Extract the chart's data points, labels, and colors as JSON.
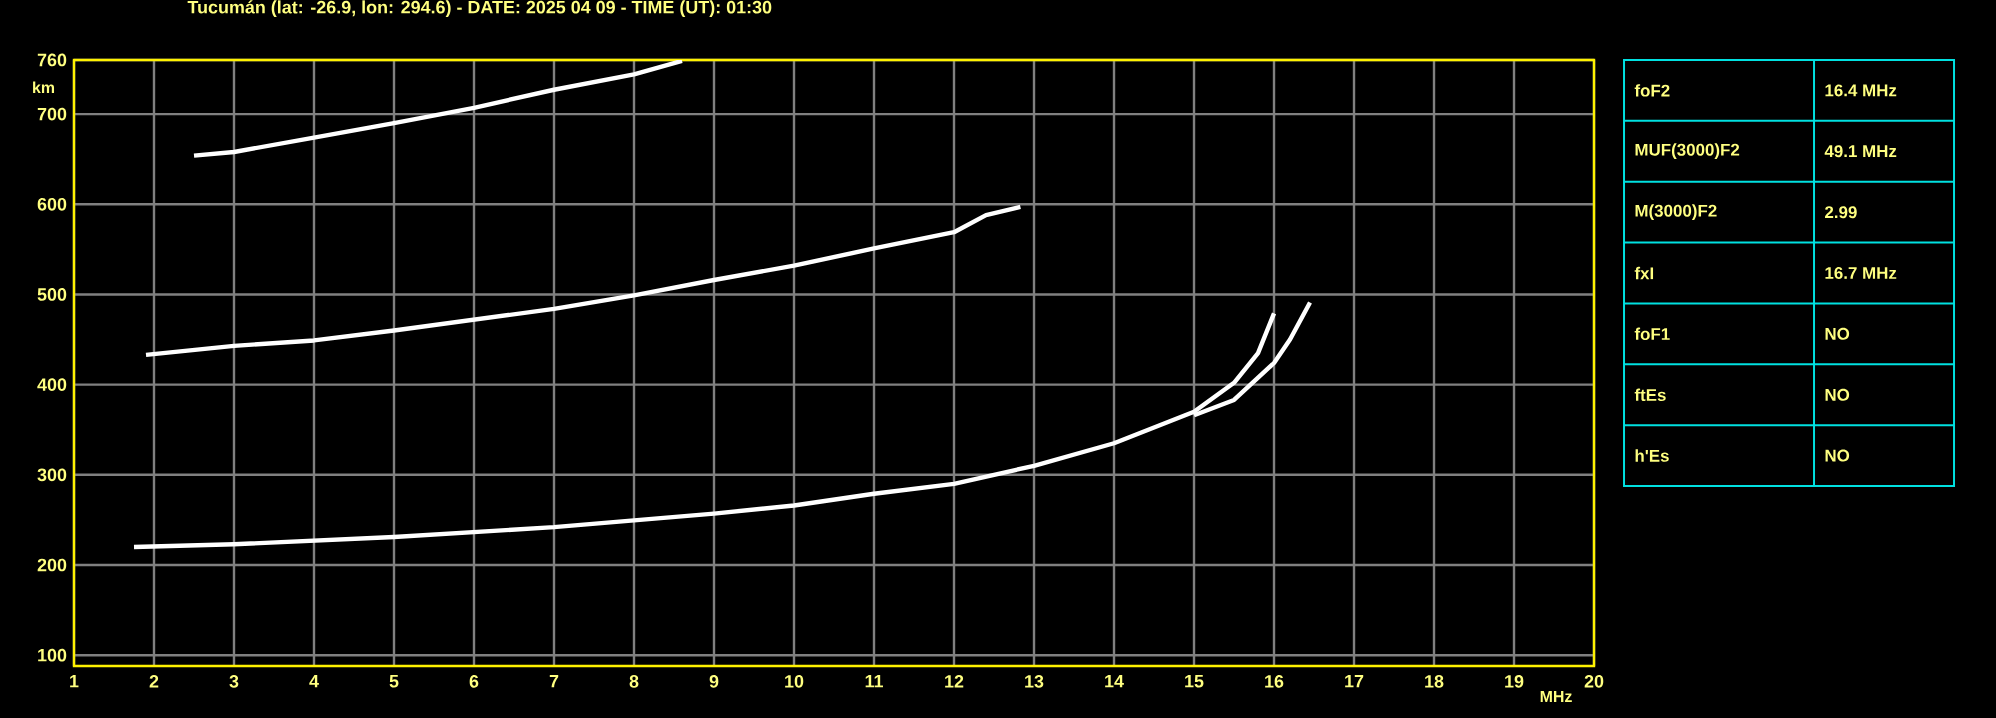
{
  "chart_data": [
    {
      "type": "line",
      "title": "Tucumán (lat: -26.9, lon: 294.6) - DATE: 2025 04 09 - TIME (UT): 01:30",
      "xlabel": "MHz",
      "ylabel": "km",
      "xlim": [
        1,
        20
      ],
      "ylim": [
        88,
        760
      ],
      "xticks": [
        1,
        2,
        3,
        4,
        5,
        6,
        7,
        8,
        9,
        10,
        11,
        12,
        13,
        14,
        15,
        16,
        17,
        18,
        19,
        20
      ],
      "yticks": [
        100,
        200,
        300,
        400,
        500,
        600,
        700,
        760
      ],
      "grid": true,
      "marker": "none",
      "line_style": "solid",
      "series": [
        {
          "color": "#ffffff",
          "x": [
            1.75,
            3,
            5,
            7,
            9,
            10,
            11,
            12,
            13,
            14,
            15,
            15.5,
            15.8,
            16.0
          ],
          "values": [
            220,
            223,
            231,
            242,
            257,
            266,
            279,
            290,
            310,
            335,
            370,
            402,
            435,
            479
          ]
        },
        {
          "color": "#ffffff",
          "x": [
            15.0,
            15.5,
            16.0,
            16.2,
            16.45
          ],
          "values": [
            366,
            383,
            424,
            450,
            491
          ]
        },
        {
          "color": "#ffffff",
          "x": [
            1.9,
            3,
            4,
            5,
            6,
            7,
            8,
            9,
            10,
            11,
            12,
            12.4,
            12.83
          ],
          "values": [
            433,
            443,
            449,
            460,
            472,
            484,
            499,
            516,
            532,
            551,
            569,
            588,
            597
          ]
        },
        {
          "color": "#ffffff",
          "x": [
            2.5,
            3,
            4,
            5,
            6,
            7,
            8,
            8.6
          ],
          "values": [
            654,
            658,
            674,
            690,
            707,
            727,
            744,
            759
          ]
        }
      ]
    },
    {
      "type": "other",
      "annotations": [
        "foF2",
        "16.4 MHz",
        "MUF(3000)F2",
        "49.1 MHz",
        "M(3000)F2",
        "2.99",
        "fxI",
        "16.7 MHz",
        "foF1",
        "NO",
        "ftEs",
        "NO",
        "h'Es",
        "NO"
      ]
    }
  ]
}
